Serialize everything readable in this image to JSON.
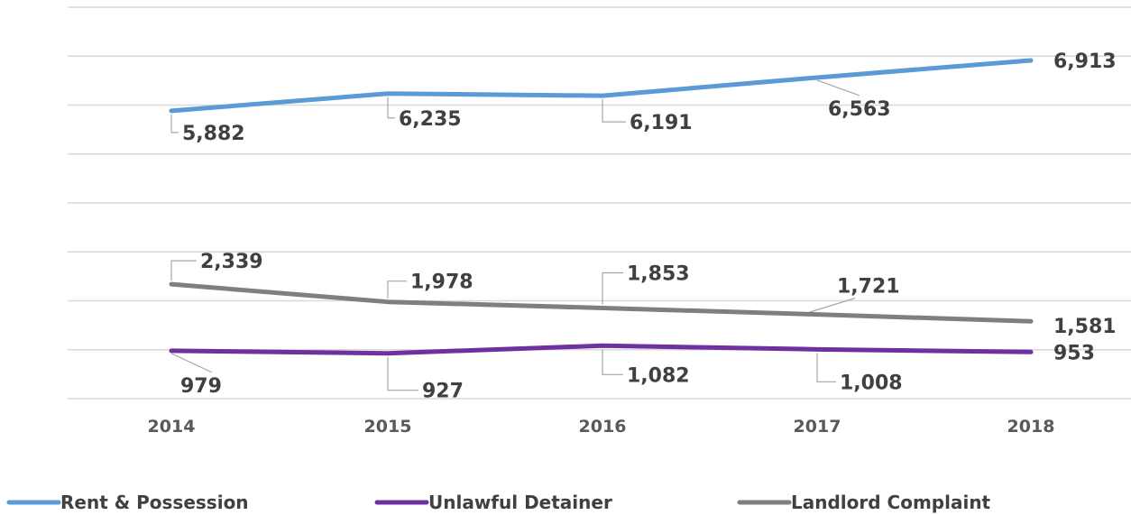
{
  "chart_data": {
    "type": "line",
    "title": "",
    "xlabel": "",
    "ylabel": "",
    "categories": [
      "2014",
      "2015",
      "2016",
      "2017",
      "2018"
    ],
    "ylim": [
      0,
      8000
    ],
    "gridlines": true,
    "y_axis_labels_shown": false,
    "legend_position": "bottom",
    "series": [
      {
        "name": "Rent & Possession",
        "color": "#5b9bd5",
        "values": [
          5882,
          6235,
          6191,
          6563,
          6913
        ],
        "labels": [
          "5,882",
          "6,235",
          "6,191",
          "6,563",
          "6,913"
        ]
      },
      {
        "name": "Unlawful Detainer",
        "color": "#7030a0",
        "values": [
          979,
          927,
          1082,
          1008,
          953
        ],
        "labels": [
          "979",
          "927",
          "1,082",
          "1,008",
          "953"
        ]
      },
      {
        "name": "Landlord Complaint",
        "color": "#7f7f7f",
        "values": [
          2339,
          1978,
          1853,
          1721,
          1581
        ],
        "labels": [
          "2,339",
          "1,978",
          "1,853",
          "1,721",
          "1,581"
        ]
      }
    ]
  }
}
